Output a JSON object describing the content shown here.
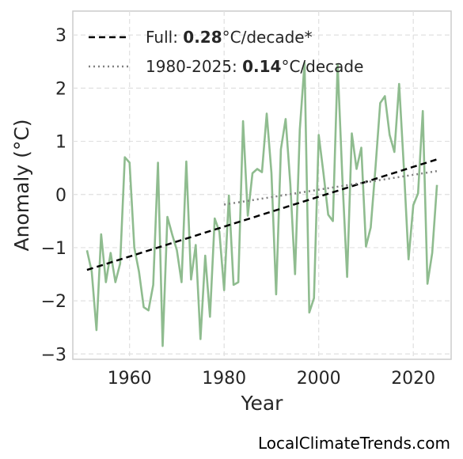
{
  "chart_data": {
    "type": "line",
    "xlabel": "Year",
    "ylabel": "Anomaly (°C)",
    "xlim": [
      1948,
      2028
    ],
    "ylim": [
      -3.1,
      3.45
    ],
    "xticks": [
      1960,
      1980,
      2000,
      2020
    ],
    "yticks": [
      -3,
      -2,
      -1,
      0,
      1,
      2,
      3
    ],
    "tick_labels_y": [
      "−3",
      "−2",
      "−1",
      "0",
      "1",
      "2",
      "3"
    ],
    "grid": true,
    "legend_placement": "top-left",
    "series": [
      {
        "type": "line",
        "color": "#8fbc8f",
        "x": [
          1951,
          1952,
          1953,
          1954,
          1955,
          1956,
          1957,
          1958,
          1959,
          1960,
          1961,
          1962,
          1963,
          1964,
          1965,
          1966,
          1967,
          1968,
          1969,
          1970,
          1971,
          1972,
          1973,
          1974,
          1975,
          1976,
          1977,
          1978,
          1979,
          1980,
          1981,
          1982,
          1983,
          1984,
          1985,
          1986,
          1987,
          1988,
          1989,
          1990,
          1991,
          1992,
          1993,
          1994,
          1995,
          1996,
          1997,
          1998,
          1999,
          2000,
          2001,
          2002,
          2003,
          2004,
          2005,
          2006,
          2007,
          2008,
          2009,
          2010,
          2011,
          2012,
          2013,
          2014,
          2015,
          2016,
          2017,
          2018,
          2019,
          2020,
          2021,
          2022,
          2023,
          2024,
          2025
        ],
        "y": [
          -1.05,
          -1.45,
          -2.55,
          -0.75,
          -1.65,
          -1.1,
          -1.65,
          -1.3,
          0.7,
          0.6,
          -1.0,
          -1.45,
          -2.12,
          -2.18,
          -1.7,
          0.6,
          -2.85,
          -0.42,
          -0.75,
          -1.05,
          -1.65,
          0.62,
          -1.6,
          -0.95,
          -2.72,
          -1.15,
          -2.3,
          -0.45,
          -0.7,
          -1.8,
          -0.02,
          -1.7,
          -1.65,
          1.38,
          -0.4,
          0.4,
          0.48,
          0.42,
          1.52,
          0.4,
          -1.88,
          0.85,
          1.42,
          0.2,
          -1.5,
          1.22,
          2.48,
          -2.22,
          -1.95,
          1.12,
          0.4,
          -0.38,
          -0.5,
          2.45,
          0.3,
          -1.55,
          1.15,
          0.48,
          0.88,
          -0.98,
          -0.62,
          0.5,
          1.72,
          1.85,
          1.12,
          0.8,
          2.08,
          0.5,
          -1.22,
          -0.2,
          0.02,
          1.57,
          -1.68,
          -1.1,
          0.18
        ]
      },
      {
        "type": "line",
        "style": "dashed",
        "color": "#000000",
        "x": [
          1951,
          2025
        ],
        "y": [
          -1.42,
          0.66
        ]
      },
      {
        "type": "line",
        "style": "dotted",
        "color": "#808080",
        "x": [
          1980,
          2025
        ],
        "y": [
          -0.19,
          0.44
        ]
      }
    ],
    "legend": [
      {
        "prefix": "Full: ",
        "value": "0.28",
        "suffix": "°C/decade*",
        "style": "dashed",
        "color": "#000000"
      },
      {
        "prefix": "1980-2025: ",
        "value": "0.14",
        "suffix": "°C/decade",
        "style": "dotted",
        "color": "#808080"
      }
    ]
  },
  "credit": "LocalClimateTrends.com"
}
